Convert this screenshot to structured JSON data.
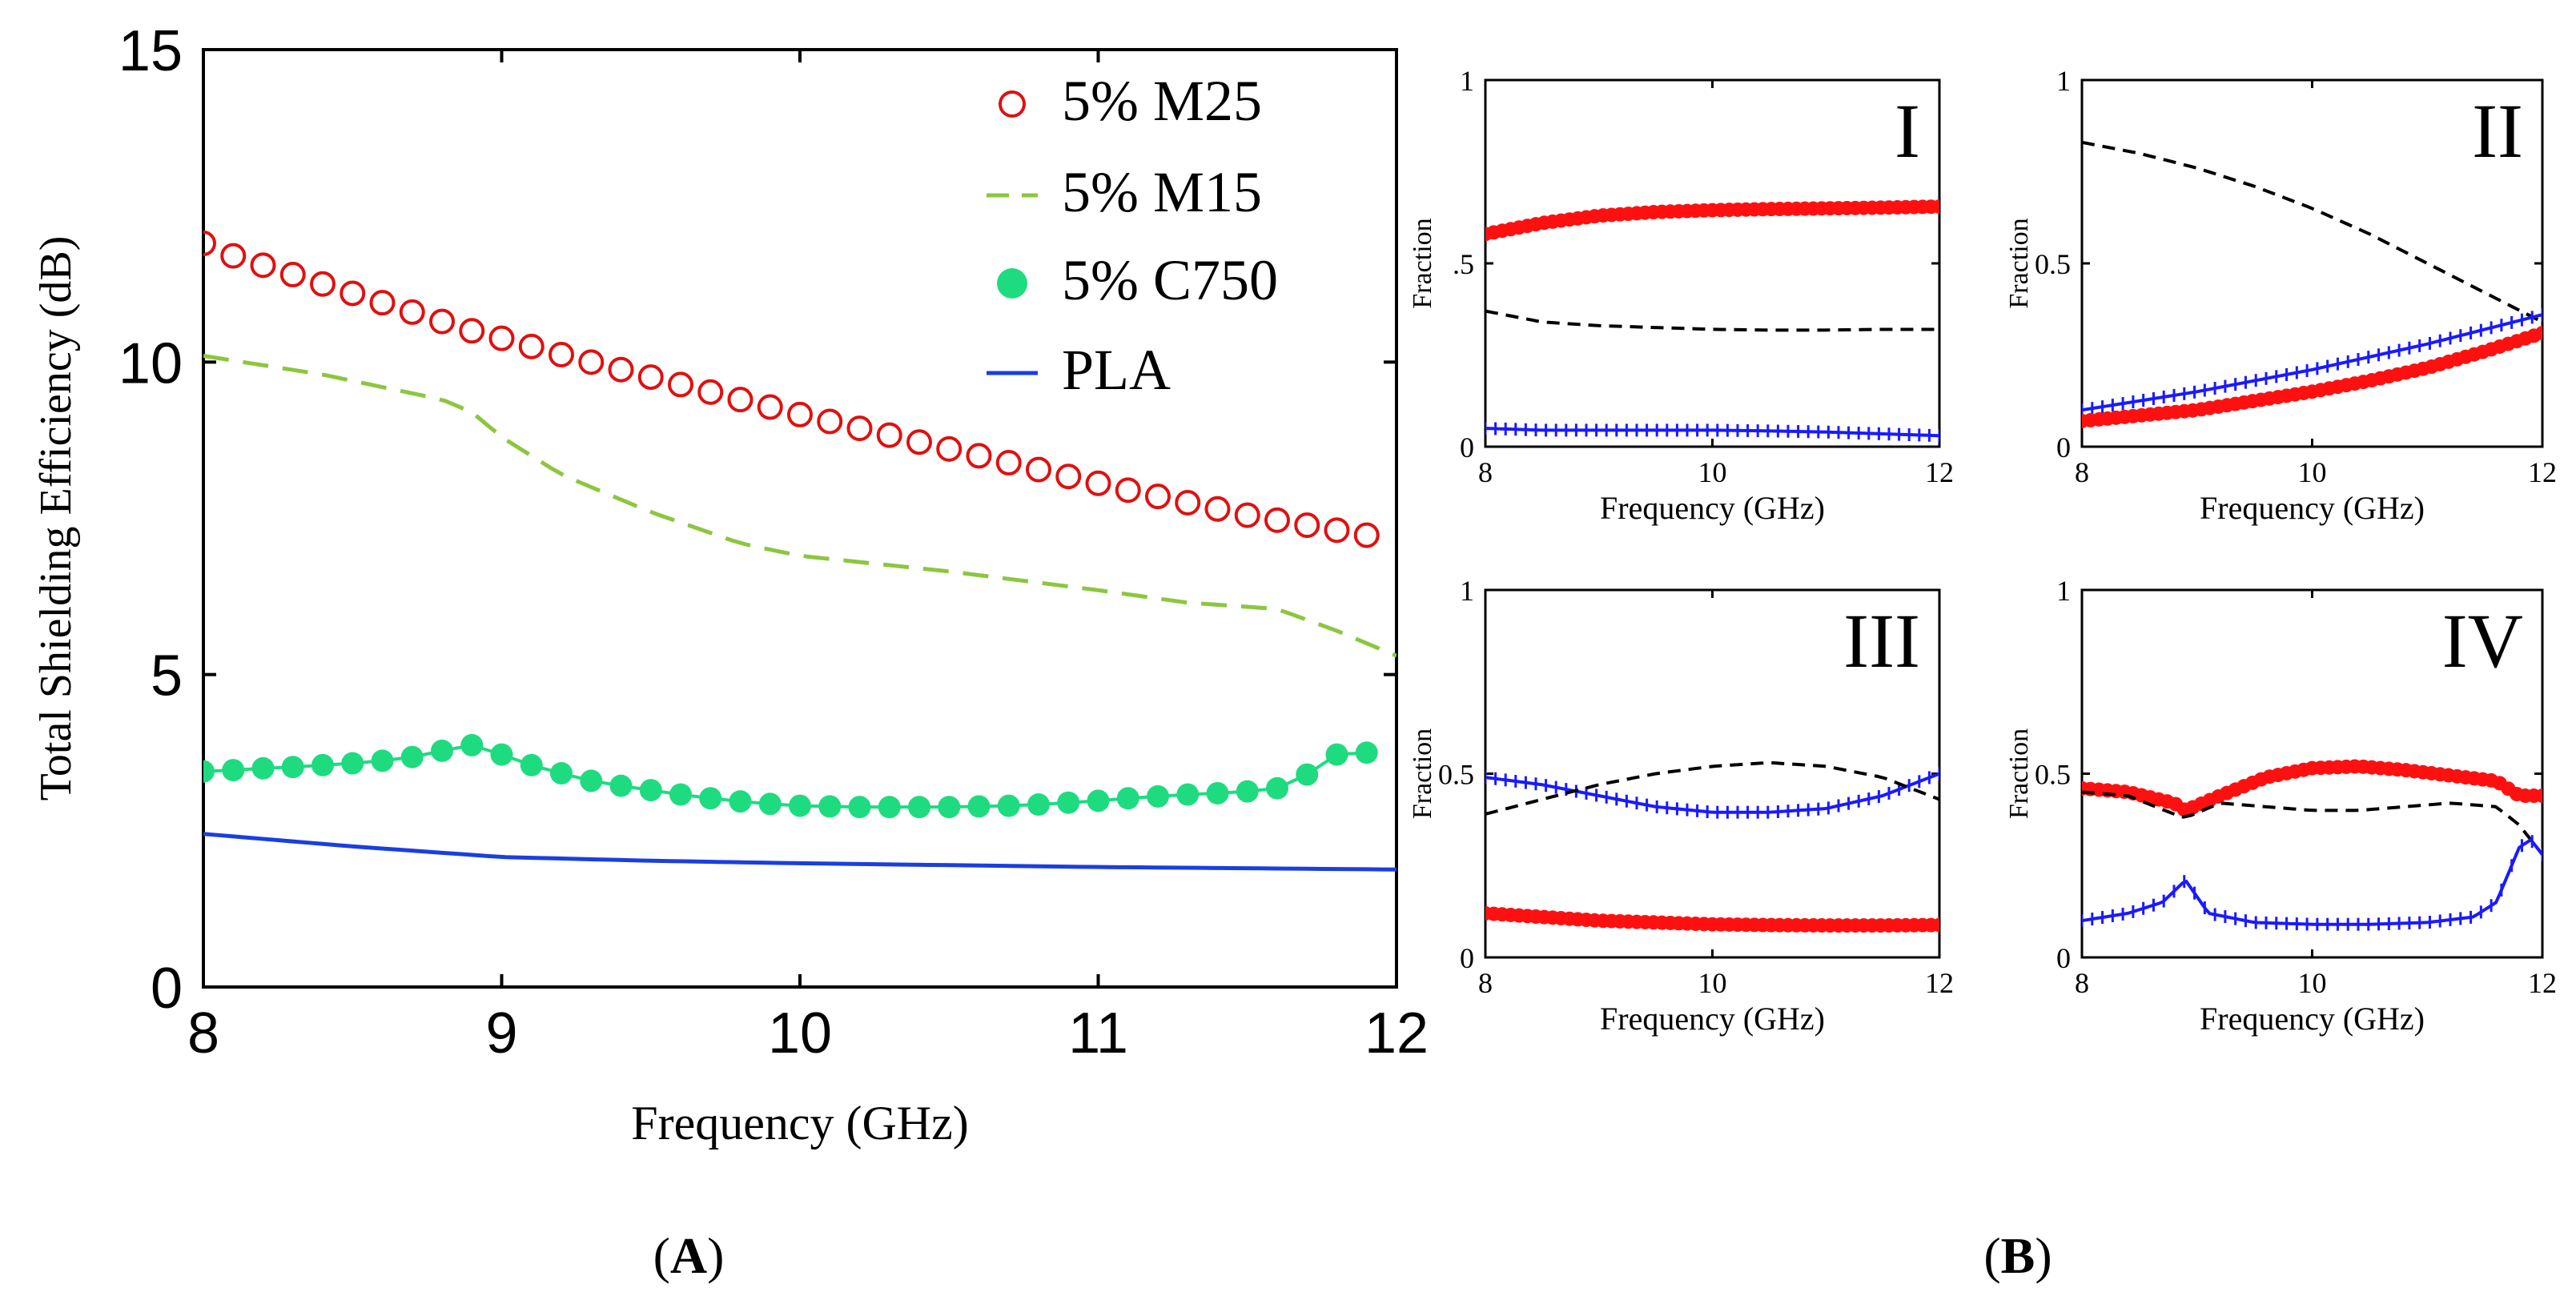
{
  "panel_labels": {
    "a": "A",
    "b": "B"
  },
  "chart_data": [
    {
      "id": "A",
      "type": "line",
      "xlabel": "Frequency (GHz)",
      "ylabel": "Total Shielding Efficiency (dB)",
      "xlim": [
        8,
        12
      ],
      "ylim": [
        0,
        15
      ],
      "xticks": [
        8,
        9,
        10,
        11,
        12
      ],
      "yticks": [
        0,
        5,
        10,
        15
      ],
      "grid": false,
      "legend_position": "top-right",
      "series": [
        {
          "name": "5% M25",
          "style": "open-circle",
          "color": "#e01010",
          "x": [
            8.0,
            8.1,
            8.2,
            8.3,
            8.4,
            8.5,
            8.6,
            8.7,
            8.8,
            8.9,
            9.0,
            9.1,
            9.2,
            9.3,
            9.4,
            9.5,
            9.6,
            9.7,
            9.8,
            9.9,
            10.0,
            10.1,
            10.2,
            10.3,
            10.4,
            10.5,
            10.6,
            10.7,
            10.8,
            10.9,
            11.0,
            11.1,
            11.2,
            11.3,
            11.4,
            11.5,
            11.6,
            11.7,
            11.8,
            11.9
          ],
          "y": [
            11.9,
            11.7,
            11.55,
            11.4,
            11.25,
            11.1,
            10.95,
            10.8,
            10.65,
            10.5,
            10.38,
            10.25,
            10.12,
            10.0,
            9.88,
            9.76,
            9.64,
            9.52,
            9.4,
            9.28,
            9.16,
            9.05,
            8.94,
            8.83,
            8.72,
            8.61,
            8.5,
            8.39,
            8.28,
            8.17,
            8.06,
            7.95,
            7.85,
            7.75,
            7.65,
            7.55,
            7.47,
            7.39,
            7.31,
            7.23
          ]
        },
        {
          "name": "5% M15",
          "style": "dashed",
          "color": "#8cc63f",
          "x": [
            8.0,
            8.4,
            8.8,
            8.9,
            9.0,
            9.2,
            9.5,
            9.8,
            10.0,
            10.5,
            11.0,
            11.3,
            11.6,
            11.8,
            12.0
          ],
          "y": [
            10.1,
            9.8,
            9.4,
            9.2,
            8.8,
            8.2,
            7.6,
            7.1,
            6.9,
            6.65,
            6.35,
            6.15,
            6.05,
            5.7,
            5.3
          ]
        },
        {
          "name": "5% C750",
          "style": "filled-circle",
          "color": "#1fdb80",
          "x": [
            8.0,
            8.1,
            8.2,
            8.3,
            8.4,
            8.5,
            8.6,
            8.7,
            8.8,
            8.9,
            9.0,
            9.1,
            9.2,
            9.3,
            9.4,
            9.5,
            9.6,
            9.7,
            9.8,
            9.9,
            10.0,
            10.1,
            10.2,
            10.3,
            10.4,
            10.5,
            10.6,
            10.7,
            10.8,
            10.9,
            11.0,
            11.1,
            11.2,
            11.3,
            11.4,
            11.5,
            11.6,
            11.7,
            11.8,
            11.9
          ],
          "y": [
            3.45,
            3.47,
            3.5,
            3.52,
            3.55,
            3.58,
            3.62,
            3.68,
            3.78,
            3.87,
            3.72,
            3.55,
            3.42,
            3.3,
            3.22,
            3.15,
            3.08,
            3.02,
            2.97,
            2.93,
            2.9,
            2.89,
            2.88,
            2.88,
            2.88,
            2.88,
            2.89,
            2.9,
            2.92,
            2.95,
            2.98,
            3.02,
            3.05,
            3.08,
            3.1,
            3.13,
            3.18,
            3.4,
            3.72,
            3.75
          ]
        },
        {
          "name": "PLA",
          "style": "solid",
          "color": "#1a3fe0",
          "x": [
            8.0,
            8.5,
            9.0,
            9.5,
            10.0,
            10.5,
            11.0,
            11.5,
            12.0
          ],
          "y": [
            2.45,
            2.25,
            2.08,
            2.02,
            1.98,
            1.95,
            1.92,
            1.9,
            1.88
          ]
        }
      ]
    },
    {
      "id": "B-I",
      "type": "line",
      "title": "I",
      "xlabel": "Frequency (GHz)",
      "ylabel": "Fraction",
      "xlim": [
        8,
        12
      ],
      "ylim": [
        0,
        1
      ],
      "xticks": [
        8,
        10,
        12
      ],
      "yticks": [
        0,
        0.5,
        1
      ],
      "ytick_labels": [
        "0",
        ".5",
        "1"
      ],
      "series": [
        {
          "name": "red",
          "style": "filled-dot",
          "color": "#ff1010",
          "x": [
            8,
            8.5,
            9,
            9.5,
            10,
            10.5,
            11,
            11.5,
            12
          ],
          "y": [
            0.58,
            0.61,
            0.63,
            0.64,
            0.645,
            0.648,
            0.65,
            0.652,
            0.655
          ]
        },
        {
          "name": "black",
          "style": "dashed",
          "color": "#000000",
          "x": [
            8,
            8.5,
            9,
            9.5,
            10,
            10.5,
            11,
            11.5,
            12
          ],
          "y": [
            0.37,
            0.34,
            0.33,
            0.325,
            0.32,
            0.318,
            0.318,
            0.32,
            0.32
          ]
        },
        {
          "name": "blue",
          "style": "plus",
          "color": "#1a1aff",
          "x": [
            8,
            8.5,
            9,
            9.5,
            10,
            10.5,
            11,
            11.5,
            12
          ],
          "y": [
            0.05,
            0.045,
            0.045,
            0.045,
            0.045,
            0.043,
            0.04,
            0.035,
            0.03
          ]
        }
      ]
    },
    {
      "id": "B-II",
      "type": "line",
      "title": "II",
      "xlabel": "Frequency (GHz)",
      "ylabel": "Fraction",
      "xlim": [
        8,
        12
      ],
      "ylim": [
        0,
        1
      ],
      "xticks": [
        8,
        10,
        12
      ],
      "yticks": [
        0,
        0.5,
        1
      ],
      "ytick_labels": [
        "0",
        "0.5",
        "1"
      ],
      "series": [
        {
          "name": "black",
          "style": "dashed",
          "color": "#000000",
          "x": [
            8,
            8.5,
            9,
            9.5,
            10,
            10.5,
            11,
            11.5,
            12
          ],
          "y": [
            0.83,
            0.8,
            0.76,
            0.71,
            0.65,
            0.58,
            0.5,
            0.42,
            0.34
          ]
        },
        {
          "name": "blue",
          "style": "plus",
          "color": "#1a1aff",
          "x": [
            8,
            8.5,
            9,
            9.5,
            10,
            10.5,
            11,
            11.5,
            12
          ],
          "y": [
            0.1,
            0.125,
            0.15,
            0.18,
            0.21,
            0.245,
            0.28,
            0.32,
            0.36
          ]
        },
        {
          "name": "red",
          "style": "filled-dot",
          "color": "#ff1010",
          "x": [
            8,
            8.5,
            9,
            9.5,
            10,
            10.5,
            11,
            11.5,
            12
          ],
          "y": [
            0.07,
            0.085,
            0.1,
            0.125,
            0.15,
            0.18,
            0.215,
            0.26,
            0.31
          ]
        }
      ]
    },
    {
      "id": "B-III",
      "type": "line",
      "title": "III",
      "xlabel": "Frequency (GHz)",
      "ylabel": "Fraction",
      "xlim": [
        8,
        12
      ],
      "ylim": [
        0,
        1
      ],
      "xticks": [
        8,
        10,
        12
      ],
      "yticks": [
        0,
        0.5,
        1
      ],
      "ytick_labels": [
        "0",
        "0.5",
        "1"
      ],
      "series": [
        {
          "name": "blue",
          "style": "plus",
          "color": "#1a1aff",
          "x": [
            8,
            8.5,
            9,
            9.5,
            10,
            10.5,
            11,
            11.5,
            12
          ],
          "y": [
            0.49,
            0.47,
            0.44,
            0.41,
            0.395,
            0.395,
            0.405,
            0.44,
            0.5
          ]
        },
        {
          "name": "black",
          "style": "dashed",
          "color": "#000000",
          "x": [
            8,
            8.5,
            9,
            9.5,
            10,
            10.5,
            11,
            11.5,
            12
          ],
          "y": [
            0.39,
            0.43,
            0.47,
            0.5,
            0.52,
            0.53,
            0.52,
            0.49,
            0.43
          ]
        },
        {
          "name": "red",
          "style": "filled-dot",
          "color": "#ff1010",
          "x": [
            8,
            8.5,
            9,
            9.5,
            10,
            10.5,
            11,
            11.5,
            12
          ],
          "y": [
            0.12,
            0.11,
            0.1,
            0.095,
            0.09,
            0.088,
            0.087,
            0.087,
            0.088
          ]
        }
      ]
    },
    {
      "id": "B-IV",
      "type": "line",
      "title": "IV",
      "xlabel": "Frequency (GHz)",
      "ylabel": "Fraction",
      "xlim": [
        8,
        12
      ],
      "ylim": [
        0,
        1
      ],
      "xticks": [
        8,
        10,
        12
      ],
      "yticks": [
        0,
        0.5,
        1
      ],
      "ytick_labels": [
        "0",
        "0.5",
        "1"
      ],
      "series": [
        {
          "name": "red",
          "style": "filled-dot",
          "color": "#ff1010",
          "x": [
            8,
            8.4,
            8.8,
            8.9,
            9.2,
            9.6,
            10,
            10.4,
            10.8,
            11.2,
            11.6,
            11.8,
            12
          ],
          "y": [
            0.46,
            0.45,
            0.42,
            0.4,
            0.44,
            0.49,
            0.515,
            0.52,
            0.51,
            0.495,
            0.48,
            0.44,
            0.44
          ]
        },
        {
          "name": "black",
          "style": "dashed",
          "color": "#000000",
          "x": [
            8,
            8.4,
            8.8,
            8.9,
            9.2,
            9.6,
            10,
            10.4,
            10.8,
            11.2,
            11.6,
            11.8,
            12
          ],
          "y": [
            0.45,
            0.44,
            0.39,
            0.38,
            0.42,
            0.41,
            0.4,
            0.4,
            0.41,
            0.42,
            0.41,
            0.36,
            0.28
          ]
        },
        {
          "name": "blue",
          "style": "plus",
          "color": "#1a1aff",
          "x": [
            8,
            8.4,
            8.7,
            8.9,
            9.1,
            9.5,
            10,
            10.5,
            11,
            11.4,
            11.6,
            11.8,
            11.9,
            12
          ],
          "y": [
            0.1,
            0.12,
            0.15,
            0.21,
            0.12,
            0.095,
            0.09,
            0.09,
            0.095,
            0.11,
            0.15,
            0.3,
            0.32,
            0.28
          ]
        }
      ]
    }
  ]
}
